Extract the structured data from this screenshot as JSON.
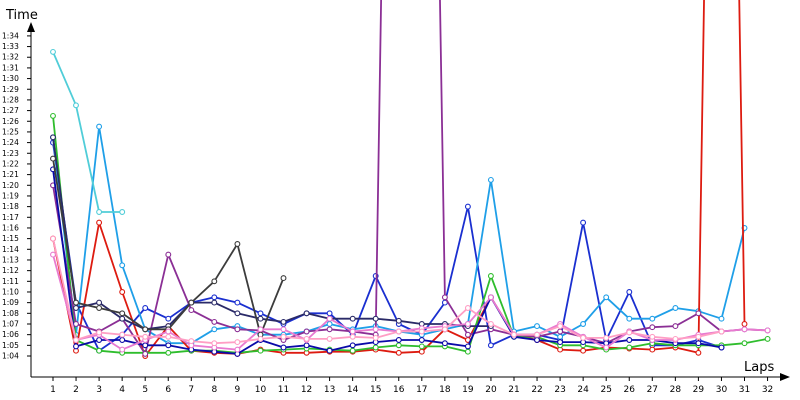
{
  "chart_data": {
    "type": "line",
    "title": "",
    "xlabel": "Laps",
    "ylabel": "Time",
    "x_ticks": [
      "1",
      "2",
      "3",
      "4",
      "5",
      "6",
      "7",
      "8",
      "9",
      "10",
      "11",
      "12",
      "13",
      "14",
      "15",
      "16",
      "17",
      "18",
      "19",
      "20",
      "21",
      "22",
      "23",
      "24",
      "25",
      "26",
      "27",
      "28",
      "29",
      "30",
      "31",
      "32"
    ],
    "y_ticks": [
      "1:04",
      "1:05",
      "1:06",
      "1:07",
      "1:08",
      "1:09",
      "1:10",
      "1:11",
      "1:12",
      "1:13",
      "1:14",
      "1:15",
      "1:16",
      "1:17",
      "1:18",
      "1:19",
      "1:20",
      "1:21",
      "1:22",
      "1:23",
      "1:24",
      "1:25",
      "1:26",
      "1:27",
      "1:28",
      "1:29",
      "1:30",
      "1:31",
      "1:32",
      "1:33",
      "1:34"
    ],
    "ylim_seconds": [
      62.5,
      96
    ],
    "xlim": [
      0.1,
      32
    ],
    "grid": "off",
    "series": [
      {
        "color": "#1a2fd0",
        "values": [
          84,
          69,
          64.5,
          66,
          68.5,
          67.5,
          69,
          69.5,
          69,
          68,
          67,
          68,
          68,
          66,
          71.5,
          67,
          66,
          69,
          78,
          65,
          66,
          66,
          65.5,
          76.5,
          65.5,
          70,
          65,
          65,
          65.5,
          64.8,
          null,
          null
        ]
      },
      {
        "color": "#1f9fe8",
        "values": [
          84.5,
          66,
          85.5,
          72.5,
          66.5,
          65.2,
          65.2,
          66.5,
          66.8,
          66,
          66,
          66.3,
          67,
          66.5,
          66.8,
          66.3,
          66,
          66.5,
          67,
          80.5,
          66.3,
          66.8,
          65.8,
          67,
          69.5,
          67.5,
          67.5,
          68.5,
          68.2,
          67.5,
          76,
          null
        ]
      },
      {
        "color": "#50cdd8",
        "values": [
          92.5,
          87.5,
          77.5,
          77.5,
          null,
          null,
          null,
          null,
          null,
          null,
          null,
          null,
          null,
          null,
          null,
          null,
          null,
          null,
          null,
          null,
          null,
          null,
          null,
          null,
          null,
          null,
          null,
          null,
          null,
          null,
          null,
          null
        ]
      },
      {
        "color": "#dd1b10",
        "values": [
          75,
          64.5,
          76.5,
          70,
          64,
          66.8,
          64.5,
          64.3,
          64.2,
          64.6,
          64.3,
          64.3,
          64.4,
          64.4,
          64.6,
          64.3,
          64.4,
          66.5,
          65.5,
          69.5,
          66,
          65.5,
          64.6,
          64.5,
          64.8,
          64.7,
          64.6,
          64.8,
          64.3,
          200,
          67,
          null
        ]
      },
      {
        "color": "#2fbd2d",
        "values": [
          86.5,
          65.5,
          64.5,
          64.3,
          64.3,
          64.3,
          64.5,
          64.5,
          64.3,
          64.5,
          64.6,
          64.7,
          64.6,
          64.5,
          64.8,
          65,
          64.9,
          64.9,
          64.4,
          71.5,
          65.8,
          65.8,
          65,
          65,
          64.6,
          64.8,
          65.2,
          65,
          65,
          65,
          65.2,
          65.6
        ]
      },
      {
        "color": "#8b2f95",
        "values": [
          80,
          67,
          66.3,
          67.5,
          64.2,
          73.5,
          68.3,
          67.2,
          66.5,
          66.4,
          65.5,
          66.3,
          66.5,
          66.3,
          66,
          200,
          200,
          69.5,
          66,
          66.5,
          66,
          65.8,
          66.3,
          65.8,
          65.2,
          66.3,
          66.7,
          66.8,
          68,
          66.3,
          66.5,
          66.4
        ]
      },
      {
        "color": "#2a2a68",
        "values": [
          84.5,
          68.5,
          69,
          67.5,
          66.5,
          66.8,
          69,
          69,
          68,
          67.5,
          67.2,
          68,
          67.5,
          67.5,
          67.5,
          67.3,
          67,
          67,
          66.8,
          66.8,
          null,
          null,
          null,
          null,
          null,
          null,
          null,
          null,
          null,
          null,
          null,
          null
        ]
      },
      {
        "color": "#0a0aa8",
        "values": [
          81.5,
          64.9,
          65.5,
          65.5,
          65,
          65,
          64.6,
          64.4,
          64.2,
          65.5,
          64.8,
          65,
          64.5,
          65,
          65.3,
          65.5,
          65.5,
          65.2,
          64.9,
          69.5,
          65.8,
          65.5,
          65.3,
          65.3,
          65.2,
          65.5,
          65.5,
          65.2,
          65.2,
          64.8,
          null,
          null
        ]
      },
      {
        "color": "#3c3c3c",
        "values": [
          82.5,
          69,
          68.5,
          68,
          66.5,
          66.5,
          69,
          71,
          74.5,
          66,
          71.3,
          null,
          null,
          null,
          null,
          null,
          null,
          null,
          null,
          null,
          null,
          null,
          null,
          null,
          null,
          null,
          null,
          null,
          null,
          null,
          null,
          null
        ]
      },
      {
        "color": "#e87ad0",
        "values": [
          73.5,
          65.5,
          66,
          64.6,
          65.5,
          66.3,
          65,
          64.8,
          64.6,
          66.5,
          66.5,
          65.5,
          67.5,
          66.3,
          66.5,
          66.3,
          66.6,
          66.8,
          67,
          69.5,
          66,
          66,
          67,
          65.8,
          64.8,
          66.3,
          65.5,
          65.5,
          66,
          66.3,
          66.5,
          66.4
        ]
      },
      {
        "color": "#ff9ec4",
        "values": [
          75,
          65.5,
          66.2,
          66,
          65.8,
          65.8,
          65.4,
          65.2,
          65.3,
          65.6,
          65.8,
          65.6,
          65.6,
          65.8,
          65.7,
          66.3,
          66.3,
          66.5,
          68.5,
          67,
          66,
          66,
          66.8,
          65.7,
          65.7,
          66.2,
          65.8,
          65.6,
          65.8,
          66.3,
          null,
          null
        ]
      }
    ]
  }
}
